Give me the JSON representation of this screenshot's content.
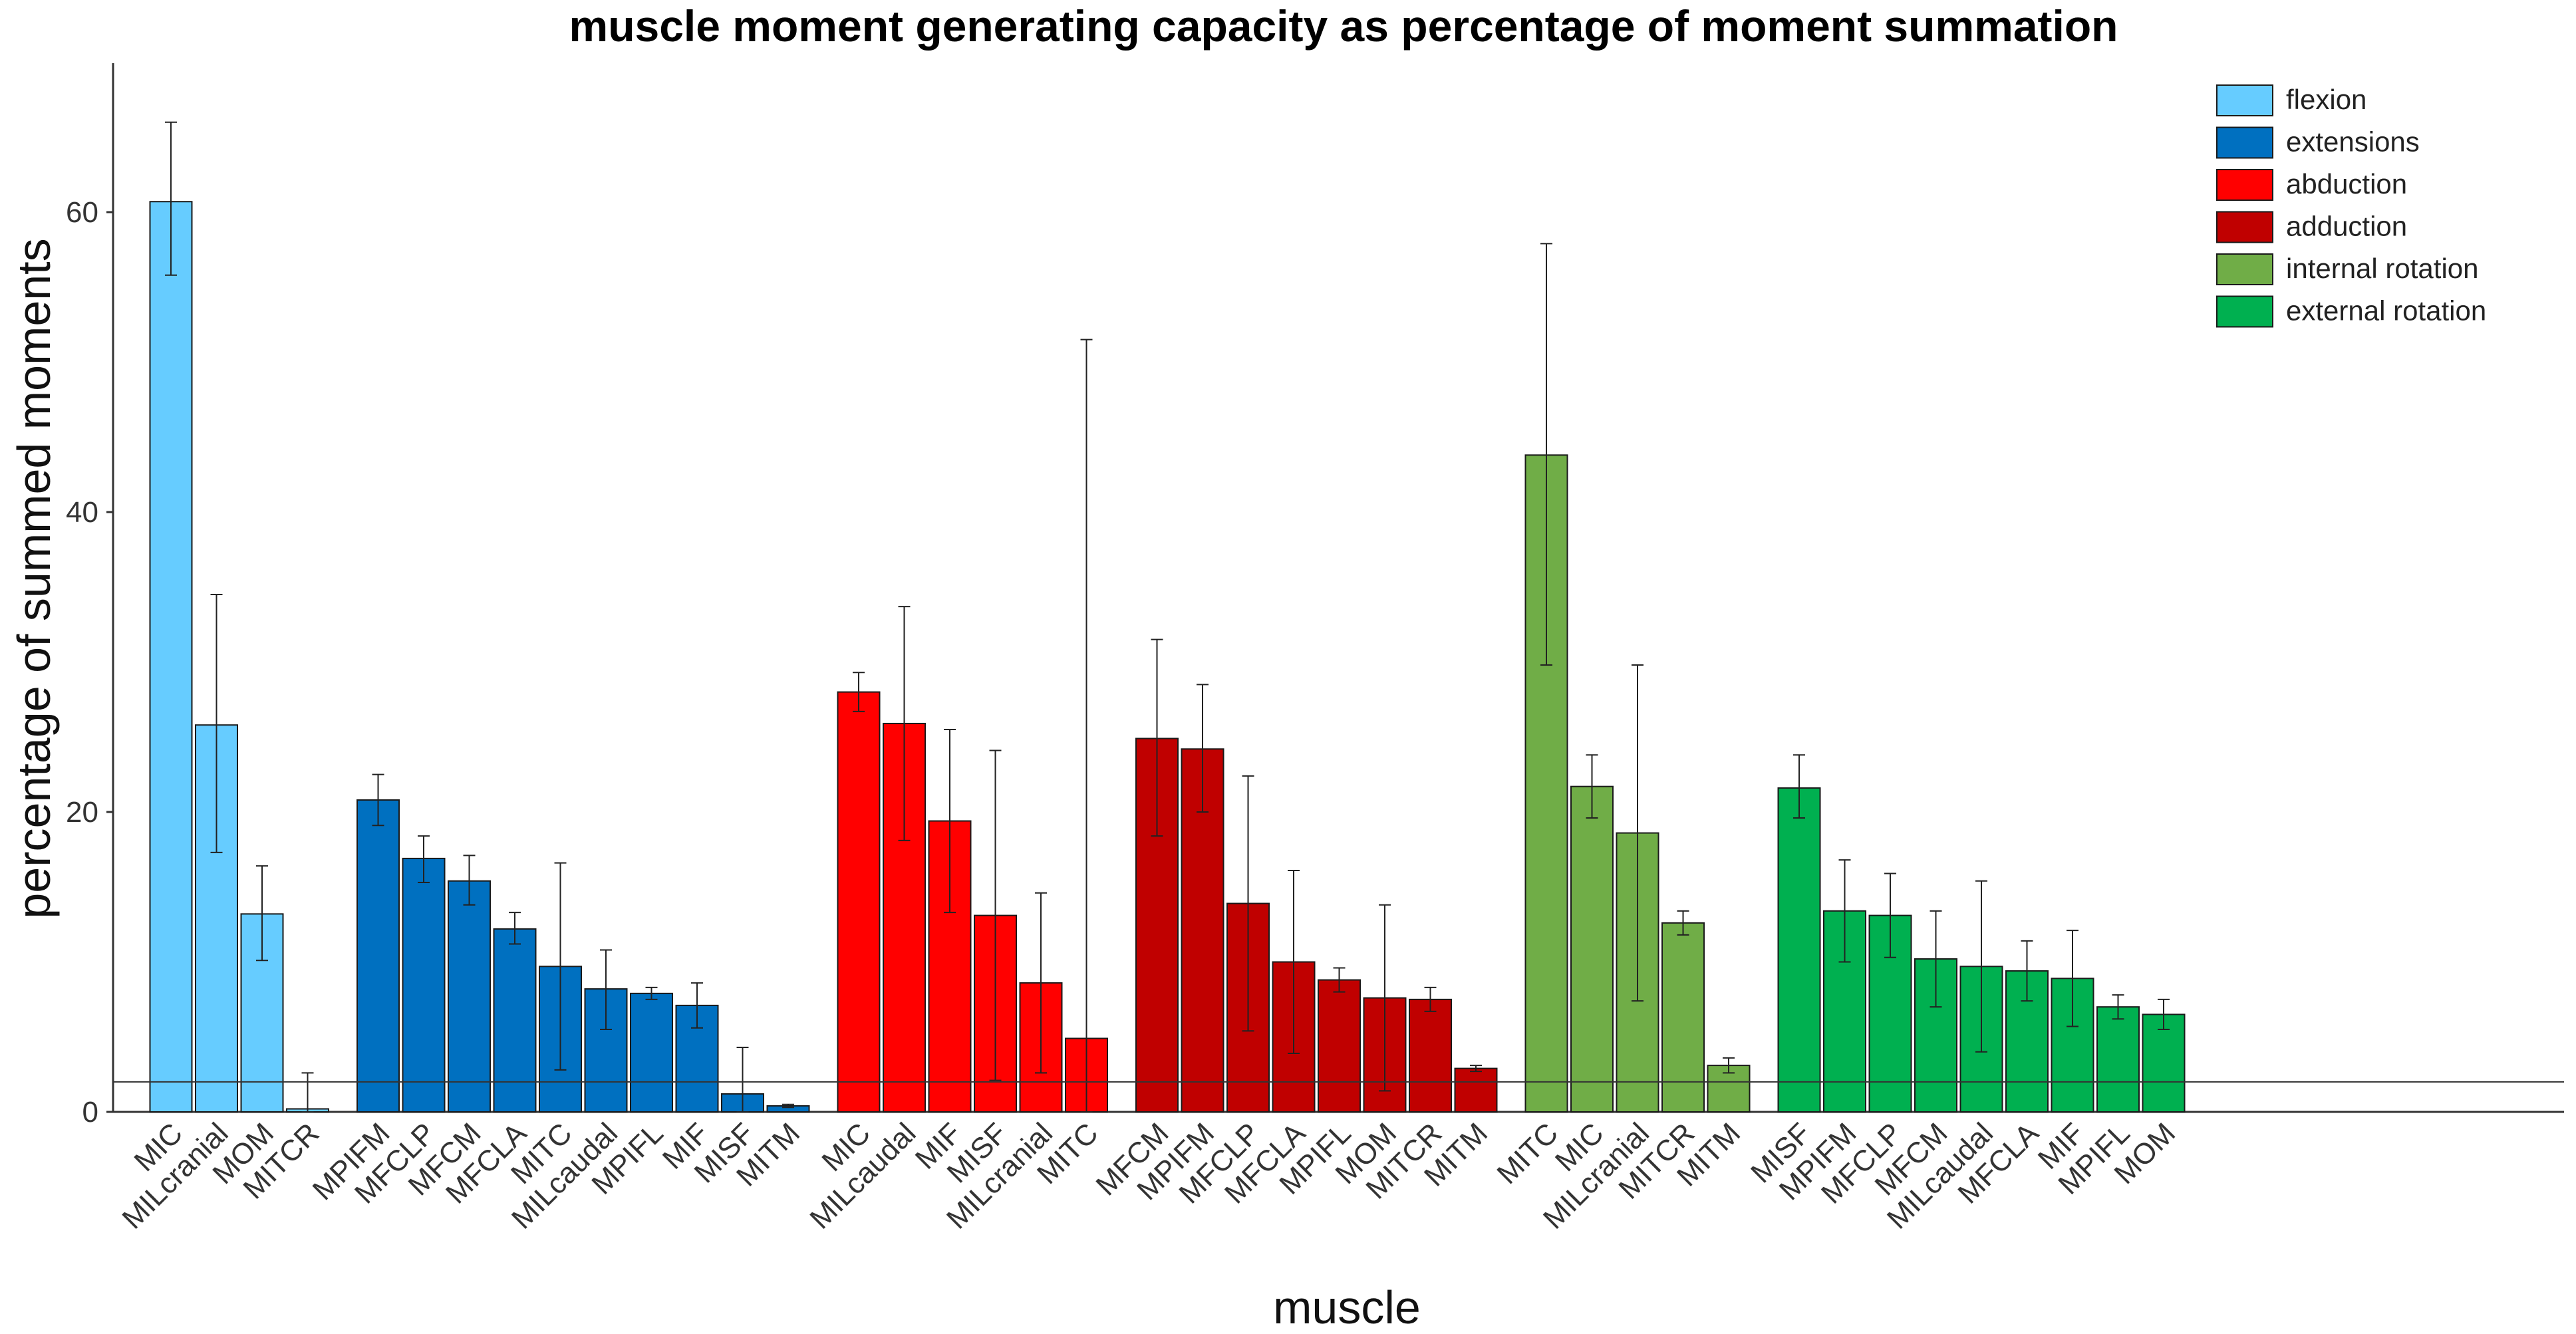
{
  "chart_data": {
    "type": "bar",
    "title": "muscle moment generating capacity as percentage of moment summation",
    "xlabel": "muscle",
    "ylabel": "percentage of summed moments",
    "ylim": [
      0,
      70
    ],
    "yticks": [
      0,
      20,
      40,
      60
    ],
    "reference_line": 2,
    "legend_position": "top-right",
    "groups": [
      {
        "name": "flexion",
        "color": "#66ccff",
        "bars": [
          {
            "label": "MIC",
            "value": 60.7,
            "err_low": 55.8,
            "err_high": 66.0
          },
          {
            "label": "MILcranial",
            "value": 25.8,
            "err_low": 17.3,
            "err_high": 34.5
          },
          {
            "label": "MOM",
            "value": 13.2,
            "err_low": 10.1,
            "err_high": 16.4
          },
          {
            "label": "MITCR",
            "value": 0.2,
            "err_low": 0.0,
            "err_high": 2.6
          }
        ]
      },
      {
        "name": "extensions",
        "color": "#0070c0",
        "bars": [
          {
            "label": "MPIFM",
            "value": 20.8,
            "err_low": 19.1,
            "err_high": 22.5
          },
          {
            "label": "MFCLP",
            "value": 16.9,
            "err_low": 15.3,
            "err_high": 18.4
          },
          {
            "label": "MFCM",
            "value": 15.4,
            "err_low": 13.8,
            "err_high": 17.1
          },
          {
            "label": "MFCLA",
            "value": 12.2,
            "err_low": 11.2,
            "err_high": 13.3
          },
          {
            "label": "MITC",
            "value": 9.7,
            "err_low": 2.8,
            "err_high": 16.6
          },
          {
            "label": "MILcaudal",
            "value": 8.2,
            "err_low": 5.5,
            "err_high": 10.8
          },
          {
            "label": "MPIFL",
            "value": 7.9,
            "err_low": 7.5,
            "err_high": 8.3
          },
          {
            "label": "MIF",
            "value": 7.1,
            "err_low": 5.6,
            "err_high": 8.6
          },
          {
            "label": "MISF",
            "value": 1.2,
            "err_low": 0.0,
            "err_high": 4.3
          },
          {
            "label": "MITM",
            "value": 0.4,
            "err_low": 0.3,
            "err_high": 0.5
          }
        ]
      },
      {
        "name": "abduction",
        "color": "#ff0000",
        "bars": [
          {
            "label": "MIC",
            "value": 28.0,
            "err_low": 26.7,
            "err_high": 29.3
          },
          {
            "label": "MILcaudal",
            "value": 25.9,
            "err_low": 18.1,
            "err_high": 33.7
          },
          {
            "label": "MIF",
            "value": 19.4,
            "err_low": 13.3,
            "err_high": 25.5
          },
          {
            "label": "MISF",
            "value": 13.1,
            "err_low": 2.1,
            "err_high": 24.1
          },
          {
            "label": "MILcranial",
            "value": 8.6,
            "err_low": 2.6,
            "err_high": 14.6
          },
          {
            "label": "MITC",
            "value": 4.9,
            "err_low": 0.0,
            "err_high": 51.5
          }
        ]
      },
      {
        "name": "adduction",
        "color": "#c00000",
        "bars": [
          {
            "label": "MFCM",
            "value": 24.9,
            "err_low": 18.4,
            "err_high": 31.5
          },
          {
            "label": "MPIFM",
            "value": 24.2,
            "err_low": 20.0,
            "err_high": 28.5
          },
          {
            "label": "MFCLP",
            "value": 13.9,
            "err_low": 5.4,
            "err_high": 22.4
          },
          {
            "label": "MFCLA",
            "value": 10.0,
            "err_low": 3.9,
            "err_high": 16.1
          },
          {
            "label": "MPIFL",
            "value": 8.8,
            "err_low": 8.0,
            "err_high": 9.6
          },
          {
            "label": "MOM",
            "value": 7.6,
            "err_low": 1.4,
            "err_high": 13.8
          },
          {
            "label": "MITCR",
            "value": 7.5,
            "err_low": 6.7,
            "err_high": 8.3
          },
          {
            "label": "MITM",
            "value": 2.9,
            "err_low": 2.7,
            "err_high": 3.1
          }
        ]
      },
      {
        "name": "internal rotation",
        "color": "#70ad47",
        "bars": [
          {
            "label": "MITC",
            "value": 43.8,
            "err_low": 29.8,
            "err_high": 57.9
          },
          {
            "label": "MIC",
            "value": 21.7,
            "err_low": 19.6,
            "err_high": 23.8
          },
          {
            "label": "MILcranial",
            "value": 18.6,
            "err_low": 7.4,
            "err_high": 29.8
          },
          {
            "label": "MITCR",
            "value": 12.6,
            "err_low": 11.8,
            "err_high": 13.4
          },
          {
            "label": "MITM",
            "value": 3.1,
            "err_low": 2.6,
            "err_high": 3.6
          }
        ]
      },
      {
        "name": "external rotation",
        "color": "#00b050",
        "bars": [
          {
            "label": "MISF",
            "value": 21.6,
            "err_low": 19.6,
            "err_high": 23.8
          },
          {
            "label": "MPIFM",
            "value": 13.4,
            "err_low": 10.0,
            "err_high": 16.8
          },
          {
            "label": "MFCLP",
            "value": 13.1,
            "err_low": 10.3,
            "err_high": 15.9
          },
          {
            "label": "MFCM",
            "value": 10.2,
            "err_low": 7.0,
            "err_high": 13.4
          },
          {
            "label": "MILcaudal",
            "value": 9.7,
            "err_low": 4.0,
            "err_high": 15.4
          },
          {
            "label": "MFCLA",
            "value": 9.4,
            "err_low": 7.4,
            "err_high": 11.4
          },
          {
            "label": "MIF",
            "value": 8.9,
            "err_low": 5.7,
            "err_high": 12.1
          },
          {
            "label": "MPIFL",
            "value": 7.0,
            "err_low": 6.2,
            "err_high": 7.8
          },
          {
            "label": "MOM",
            "value": 6.5,
            "err_low": 5.5,
            "err_high": 7.5
          }
        ]
      }
    ]
  }
}
